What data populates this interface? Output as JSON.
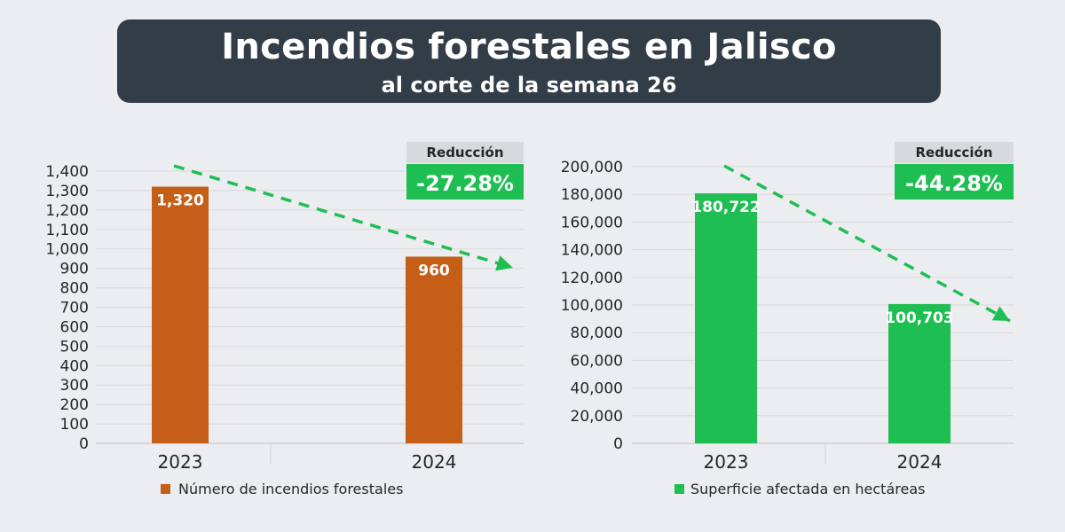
{
  "title": "Incendios forestales en Jalisco",
  "subtitle": "al corte de la semana 26",
  "colors": {
    "orange": "#c55f18",
    "green": "#1fbe52",
    "banner": "#333d48"
  },
  "chart_data": [
    {
      "type": "bar",
      "categories": [
        "2023",
        "2024"
      ],
      "series": [
        {
          "name": "Número de incendios forestales",
          "values": [
            1320,
            960
          ]
        }
      ],
      "data_labels": [
        "1,320",
        "960"
      ],
      "yticks": [
        "0",
        "100",
        "200",
        "300",
        "400",
        "500",
        "600",
        "700",
        "800",
        "900",
        "1,000",
        "1,100",
        "1,200",
        "1,300",
        "1,400"
      ],
      "ylim": [
        0,
        1400
      ],
      "grid": true,
      "legend_position": "bottom",
      "color": "#c55f18",
      "badge": {
        "label": "Reducción",
        "value": "-27.28%"
      },
      "trend": "dashed-arrow-down"
    },
    {
      "type": "bar",
      "categories": [
        "2023",
        "2024"
      ],
      "series": [
        {
          "name": "Superficie afectada en hectáreas",
          "values": [
            180722,
            100703
          ]
        }
      ],
      "data_labels": [
        "180,722",
        "100,703"
      ],
      "yticks": [
        "0",
        "20,000",
        "40,000",
        "60,000",
        "80,000",
        "100,000",
        "120,000",
        "140,000",
        "160,000",
        "180,000",
        "200,000"
      ],
      "ylim": [
        0,
        200000
      ],
      "grid": true,
      "legend_position": "bottom",
      "color": "#1fbe52",
      "badge": {
        "label": "Reducción",
        "value": "-44.28%"
      },
      "trend": "dashed-arrow-down"
    }
  ]
}
